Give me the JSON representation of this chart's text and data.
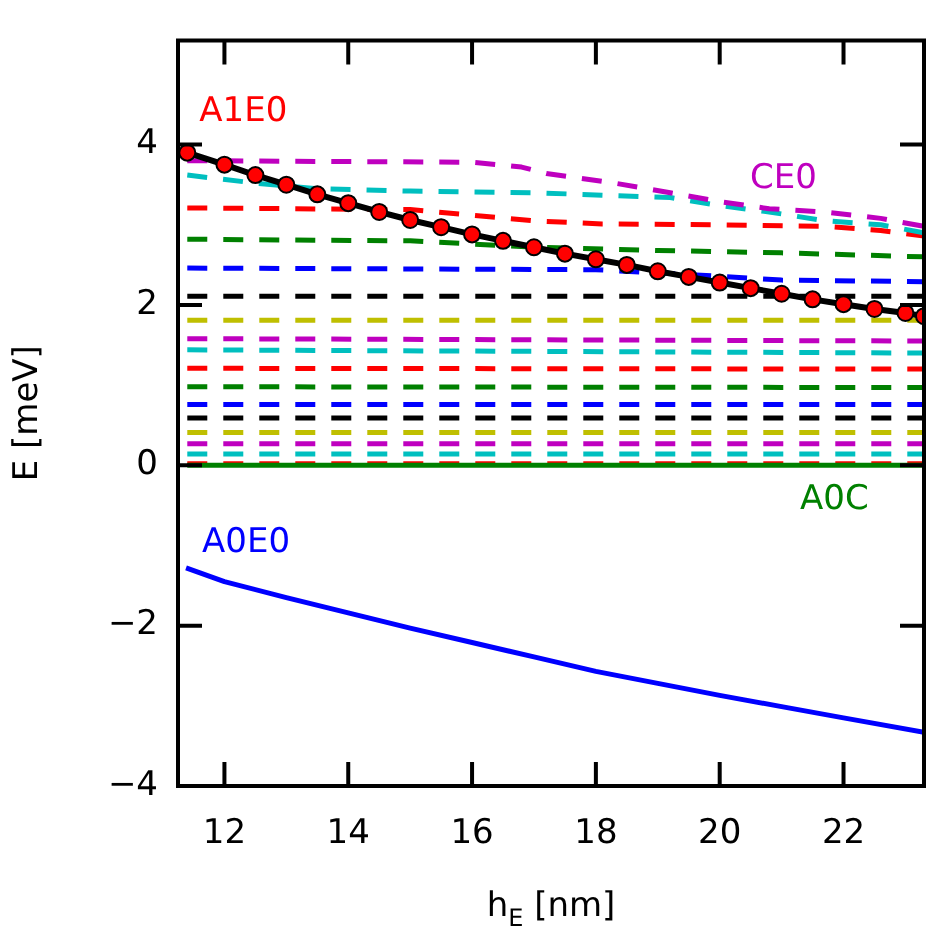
{
  "chart_data": {
    "type": "line",
    "xlabel": "h$_{E}$ [nm]",
    "ylabel": "E [meV]",
    "xlim": [
      11.25,
      23.3
    ],
    "ylim": [
      -4,
      5.3
    ],
    "xticks": [
      12,
      14,
      16,
      18,
      20,
      22
    ],
    "yticks": [
      {
        "value": -4,
        "label": "−4"
      },
      {
        "value": -2,
        "label": "−2"
      },
      0,
      2,
      4
    ],
    "series": [
      {
        "name": "A1E0",
        "type": "line",
        "color": "#ff0000",
        "marker": "circle",
        "line_style": "solid",
        "x": [
          11.4,
          12,
          12.5,
          13,
          13.5,
          14,
          14.5,
          15,
          15.5,
          16,
          16.5,
          17,
          17.5,
          18,
          18.5,
          19,
          19.5,
          20,
          20.5,
          21,
          21.5,
          22,
          22.5,
          23,
          23.3
        ],
        "values": [
          3.9,
          3.75,
          3.62,
          3.5,
          3.38,
          3.27,
          3.16,
          3.06,
          2.97,
          2.88,
          2.8,
          2.72,
          2.64,
          2.57,
          2.5,
          2.42,
          2.35,
          2.28,
          2.21,
          2.14,
          2.07,
          2.01,
          1.95,
          1.9,
          1.86
        ]
      },
      {
        "name": "CE0",
        "type": "line",
        "color": "#bf00bf",
        "marker": "none",
        "line_style": "dashed",
        "x": [
          11.4,
          16,
          16.8,
          17.2,
          18.3,
          19.2,
          20,
          20.8,
          21.7,
          22.6,
          23.3
        ],
        "values": [
          3.8,
          3.78,
          3.72,
          3.64,
          3.52,
          3.4,
          3.29,
          3.2,
          3.16,
          3.08,
          2.98
        ]
      },
      {
        "name": "A0E0",
        "type": "line",
        "color": "#0000ff",
        "marker": "none",
        "line_style": "solid",
        "x": [
          11.38,
          12,
          13,
          14,
          15,
          16,
          17,
          18,
          19,
          20,
          21,
          22,
          23.3
        ],
        "values": [
          -1.28,
          -1.45,
          -1.65,
          -1.84,
          -2.03,
          -2.21,
          -2.39,
          -2.57,
          -2.72,
          -2.87,
          -3.01,
          -3.15,
          -3.33
        ]
      },
      {
        "name": "A0C",
        "type": "line",
        "color": "#008000",
        "marker": "none",
        "line_style": "solid",
        "x": [
          11.4,
          23.3
        ],
        "values": [
          0,
          0
        ]
      },
      {
        "type": "line",
        "color": "#00bfbf",
        "marker": "none",
        "line_style": "dashed",
        "x": [
          11.4,
          12.5,
          13.5,
          15,
          17,
          18.1,
          19.2,
          20,
          20.8,
          21.7,
          22.6,
          23.3
        ],
        "values": [
          3.62,
          3.52,
          3.45,
          3.42,
          3.4,
          3.37,
          3.34,
          3.24,
          3.16,
          3.05,
          3.0,
          2.9
        ]
      },
      {
        "type": "line",
        "color": "#ff0000",
        "marker": "none",
        "line_style": "dashed",
        "x": [
          11.4,
          15,
          17,
          18.1,
          20,
          21.7,
          22.6,
          23.3
        ],
        "values": [
          3.21,
          3.19,
          3.05,
          3.01,
          3.0,
          2.98,
          2.93,
          2.86
        ]
      },
      {
        "type": "line",
        "color": "#008000",
        "marker": "none",
        "line_style": "dashed",
        "x": [
          11.4,
          15,
          17,
          19,
          21,
          23.3
        ],
        "values": [
          2.82,
          2.8,
          2.72,
          2.68,
          2.65,
          2.6
        ]
      },
      {
        "type": "line",
        "color": "#0000ff",
        "marker": "none",
        "line_style": "dashed",
        "x": [
          11.4,
          18,
          19.5,
          21,
          23.3
        ],
        "values": [
          2.46,
          2.44,
          2.38,
          2.31,
          2.29
        ]
      },
      {
        "type": "line",
        "color": "#000000",
        "marker": "none",
        "line_style": "dashed",
        "x": [
          11.4,
          23.3
        ],
        "values": [
          2.11,
          2.11
        ]
      },
      {
        "type": "line",
        "color": "#bfbf00",
        "marker": "none",
        "line_style": "dashed",
        "x": [
          11.4,
          23.3
        ],
        "values": [
          1.81,
          1.81
        ]
      },
      {
        "type": "line",
        "color": "#bf00bf",
        "marker": "none",
        "line_style": "dashed",
        "x": [
          11.4,
          23.3
        ],
        "values": [
          1.58,
          1.55
        ]
      },
      {
        "type": "line",
        "color": "#00bfbf",
        "marker": "none",
        "line_style": "dashed",
        "x": [
          11.4,
          23.3
        ],
        "values": [
          1.44,
          1.4
        ]
      },
      {
        "type": "line",
        "color": "#ff0000",
        "marker": "none",
        "line_style": "dashed",
        "x": [
          11.4,
          23.3
        ],
        "values": [
          1.21,
          1.2
        ]
      },
      {
        "type": "line",
        "color": "#008000",
        "marker": "none",
        "line_style": "dashed",
        "x": [
          11.4,
          23.3
        ],
        "values": [
          0.98,
          0.97
        ]
      },
      {
        "type": "line",
        "color": "#0000ff",
        "marker": "none",
        "line_style": "dashed",
        "x": [
          11.4,
          23.3
        ],
        "values": [
          0.76,
          0.76
        ]
      },
      {
        "type": "line",
        "color": "#000000",
        "marker": "none",
        "line_style": "dashed",
        "x": [
          11.4,
          23.3
        ],
        "values": [
          0.59,
          0.59
        ]
      },
      {
        "type": "line",
        "color": "#bfbf00",
        "marker": "none",
        "line_style": "dashed",
        "x": [
          11.4,
          23.3
        ],
        "values": [
          0.41,
          0.41
        ]
      },
      {
        "type": "line",
        "color": "#bf00bf",
        "marker": "none",
        "line_style": "dashed",
        "x": [
          11.4,
          23.3
        ],
        "values": [
          0.27,
          0.27
        ]
      },
      {
        "type": "line",
        "color": "#00bfbf",
        "marker": "none",
        "line_style": "dashed",
        "x": [
          11.4,
          23.3
        ],
        "values": [
          0.14,
          0.14
        ]
      },
      {
        "type": "line",
        "color": "#ff0000",
        "marker": "none",
        "line_style": "dashed",
        "x": [
          11.4,
          23.3
        ],
        "values": [
          0.02,
          0.02
        ]
      }
    ]
  }
}
